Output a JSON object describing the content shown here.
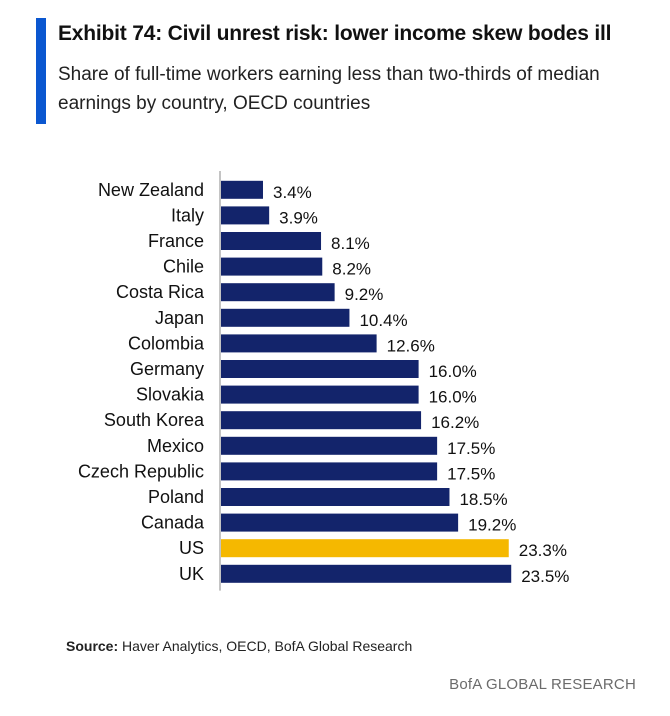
{
  "header": {
    "title": "Exhibit 74: Civil unrest risk: lower income skew bodes ill",
    "subtitle": "Share of full-time workers earning less than two-thirds of median earnings by country, OECD countries"
  },
  "footer": {
    "source_label": "Source:",
    "source_text": " Haver Analytics, OECD, BofA Global Research",
    "brand": "BofA GLOBAL RESEARCH"
  },
  "colors": {
    "accent": "#0b57d0",
    "bar": "#13246b",
    "highlight": "#f5b800"
  },
  "chart_data": {
    "type": "bar",
    "orientation": "horizontal",
    "categories": [
      "New Zealand",
      "Italy",
      "France",
      "Chile",
      "Costa Rica",
      "Japan",
      "Colombia",
      "Germany",
      "Slovakia",
      "South Korea",
      "Mexico",
      "Czech Republic",
      "Poland",
      "Canada",
      "US",
      "UK"
    ],
    "values": [
      3.4,
      3.9,
      8.1,
      8.2,
      9.2,
      10.4,
      12.6,
      16.0,
      16.0,
      16.2,
      17.5,
      17.5,
      18.5,
      19.2,
      23.3,
      23.5
    ],
    "value_labels": [
      "3.4%",
      "3.9%",
      "8.1%",
      "8.2%",
      "9.2%",
      "10.4%",
      "12.6%",
      "16.0%",
      "16.0%",
      "16.2%",
      "17.5%",
      "17.5%",
      "18.5%",
      "19.2%",
      "23.3%",
      "23.5%"
    ],
    "highlight_category": "US",
    "xlim": [
      0,
      25
    ],
    "grid": false,
    "legend": "none"
  }
}
